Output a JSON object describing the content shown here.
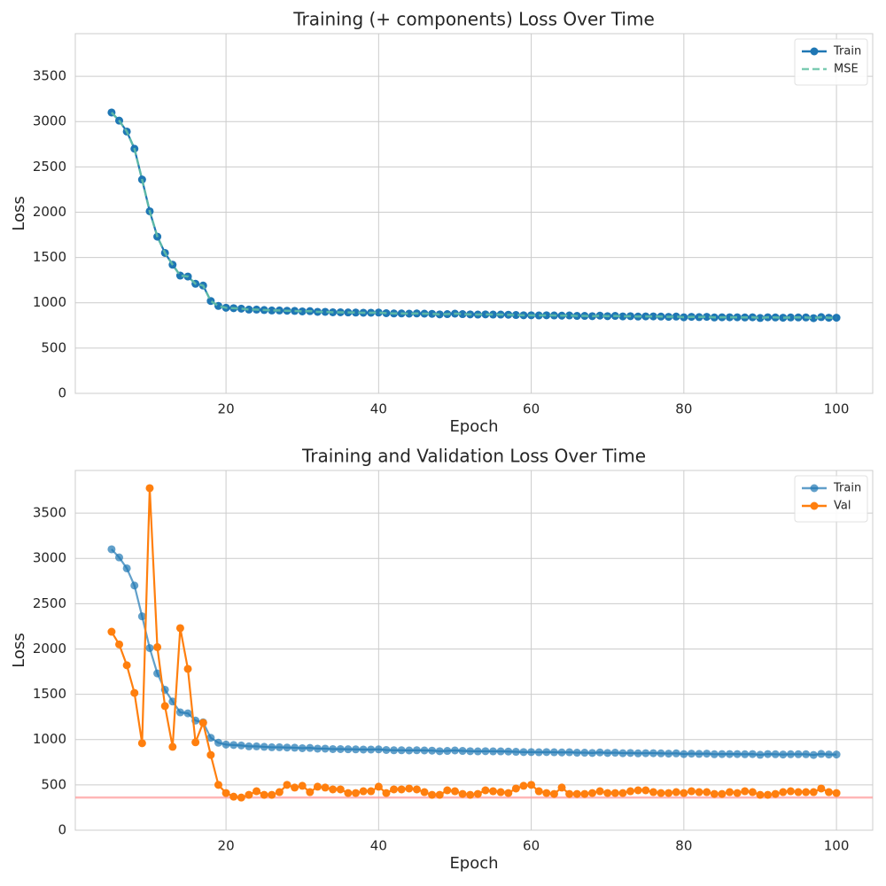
{
  "chart_data": [
    {
      "type": "line",
      "title": "Training (+ components) Loss Over Time",
      "xlabel": "Epoch",
      "ylabel": "Loss",
      "x": [
        5,
        6,
        7,
        8,
        9,
        10,
        11,
        12,
        13,
        14,
        15,
        16,
        17,
        18,
        19,
        20,
        21,
        22,
        23,
        24,
        25,
        26,
        27,
        28,
        29,
        30,
        31,
        32,
        33,
        34,
        35,
        36,
        37,
        38,
        39,
        40,
        41,
        42,
        43,
        44,
        45,
        46,
        47,
        48,
        49,
        50,
        51,
        52,
        53,
        54,
        55,
        56,
        57,
        58,
        59,
        60,
        61,
        62,
        63,
        64,
        65,
        66,
        67,
        68,
        69,
        70,
        71,
        72,
        73,
        74,
        75,
        76,
        77,
        78,
        79,
        80,
        81,
        82,
        83,
        84,
        85,
        86,
        87,
        88,
        89,
        90,
        91,
        92,
        93,
        94,
        95,
        96,
        97,
        98,
        99,
        100
      ],
      "series": [
        {
          "name": "Train",
          "color": "#1f77b4",
          "markers": true,
          "dashed": false,
          "opacity": 1,
          "values": [
            3100,
            3010,
            2890,
            2700,
            2360,
            2010,
            1730,
            1550,
            1420,
            1300,
            1290,
            1210,
            1190,
            1020,
            965,
            945,
            940,
            935,
            925,
            925,
            920,
            915,
            915,
            912,
            910,
            905,
            908,
            900,
            900,
            895,
            895,
            893,
            892,
            890,
            890,
            892,
            885,
            882,
            882,
            880,
            882,
            880,
            878,
            872,
            875,
            880,
            875,
            872,
            870,
            872,
            870,
            870,
            868,
            865,
            862,
            862,
            860,
            862,
            860,
            858,
            860,
            855,
            855,
            852,
            858,
            852,
            855,
            850,
            852,
            848,
            850,
            850,
            848,
            845,
            848,
            840,
            845,
            842,
            845,
            838,
            840,
            840,
            840,
            838,
            840,
            832,
            840,
            838,
            835,
            838,
            838,
            838,
            830,
            842,
            835,
            835
          ]
        },
        {
          "name": "MSE",
          "color": "#66c2a5",
          "markers": false,
          "dashed": true,
          "opacity": 0.85,
          "values": [
            3100,
            3010,
            2890,
            2700,
            2360,
            2010,
            1730,
            1550,
            1420,
            1300,
            1290,
            1210,
            1190,
            1020,
            965,
            945,
            940,
            935,
            925,
            925,
            920,
            915,
            915,
            912,
            910,
            905,
            908,
            900,
            900,
            895,
            895,
            893,
            892,
            890,
            890,
            892,
            885,
            882,
            882,
            880,
            882,
            880,
            878,
            872,
            875,
            880,
            875,
            872,
            870,
            872,
            870,
            870,
            868,
            865,
            862,
            862,
            860,
            862,
            860,
            858,
            860,
            855,
            855,
            852,
            858,
            852,
            855,
            850,
            852,
            848,
            850,
            850,
            848,
            845,
            848,
            840,
            845,
            842,
            845,
            838,
            840,
            840,
            840,
            838,
            840,
            832,
            840,
            838,
            835,
            838,
            838,
            838,
            830,
            842,
            835,
            835
          ]
        }
      ],
      "xlim": [
        0.25,
        104.75
      ],
      "xticks": [
        20,
        40,
        60,
        80,
        100
      ],
      "ylim": [
        0,
        3970
      ],
      "yticks": [
        0,
        500,
        1000,
        1500,
        2000,
        2500,
        3000,
        3500
      ],
      "grid": true,
      "legend": "upper right"
    },
    {
      "type": "line",
      "title": "Training and Validation Loss Over Time",
      "xlabel": "Epoch",
      "ylabel": "Loss",
      "x": [
        5,
        6,
        7,
        8,
        9,
        10,
        11,
        12,
        13,
        14,
        15,
        16,
        17,
        18,
        19,
        20,
        21,
        22,
        23,
        24,
        25,
        26,
        27,
        28,
        29,
        30,
        31,
        32,
        33,
        34,
        35,
        36,
        37,
        38,
        39,
        40,
        41,
        42,
        43,
        44,
        45,
        46,
        47,
        48,
        49,
        50,
        51,
        52,
        53,
        54,
        55,
        56,
        57,
        58,
        59,
        60,
        61,
        62,
        63,
        64,
        65,
        66,
        67,
        68,
        69,
        70,
        71,
        72,
        73,
        74,
        75,
        76,
        77,
        78,
        79,
        80,
        81,
        82,
        83,
        84,
        85,
        86,
        87,
        88,
        89,
        90,
        91,
        92,
        93,
        94,
        95,
        96,
        97,
        98,
        99,
        100
      ],
      "series": [
        {
          "name": "Train",
          "color": "#1f77b4",
          "markers": true,
          "dashed": false,
          "opacity": 0.7,
          "values": [
            3100,
            3010,
            2890,
            2700,
            2360,
            2010,
            1730,
            1550,
            1420,
            1300,
            1290,
            1210,
            1190,
            1020,
            965,
            945,
            940,
            935,
            925,
            925,
            920,
            915,
            915,
            912,
            910,
            905,
            908,
            900,
            900,
            895,
            895,
            893,
            892,
            890,
            890,
            892,
            885,
            882,
            882,
            880,
            882,
            880,
            878,
            872,
            875,
            880,
            875,
            872,
            870,
            872,
            870,
            870,
            868,
            865,
            862,
            862,
            860,
            862,
            860,
            858,
            860,
            855,
            855,
            852,
            858,
            852,
            855,
            850,
            852,
            848,
            850,
            850,
            848,
            845,
            848,
            840,
            845,
            842,
            845,
            838,
            840,
            840,
            840,
            838,
            840,
            832,
            840,
            838,
            835,
            838,
            838,
            838,
            830,
            842,
            835,
            835
          ]
        },
        {
          "name": "Val",
          "color": "#ff7f0e",
          "markers": true,
          "dashed": false,
          "opacity": 1,
          "values": [
            2190,
            2050,
            1820,
            1515,
            960,
            3775,
            2020,
            1370,
            920,
            2230,
            1780,
            970,
            1185,
            830,
            500,
            410,
            370,
            360,
            390,
            430,
            390,
            390,
            420,
            500,
            470,
            490,
            420,
            480,
            470,
            450,
            450,
            410,
            410,
            430,
            430,
            480,
            410,
            450,
            450,
            460,
            450,
            420,
            390,
            390,
            440,
            430,
            400,
            390,
            400,
            440,
            430,
            420,
            410,
            460,
            490,
            500,
            430,
            410,
            400,
            470,
            400,
            400,
            400,
            410,
            430,
            410,
            410,
            410,
            430,
            440,
            440,
            420,
            410,
            410,
            420,
            410,
            430,
            420,
            420,
            400,
            400,
            420,
            410,
            430,
            420,
            390,
            390,
            400,
            420,
            430,
            420,
            420,
            420,
            460,
            420,
            410
          ]
        }
      ],
      "hline": 360,
      "hline_color": "#ff9999",
      "xlim": [
        0.25,
        104.75
      ],
      "xticks": [
        20,
        40,
        60,
        80,
        100
      ],
      "ylim": [
        0,
        3970
      ],
      "yticks": [
        0,
        500,
        1000,
        1500,
        2000,
        2500,
        3000,
        3500
      ],
      "grid": true,
      "legend": "upper right"
    }
  ]
}
